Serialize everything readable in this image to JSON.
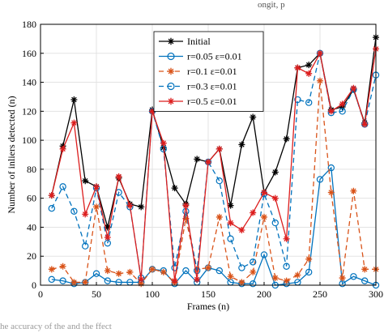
{
  "page_fragments": {
    "top": "ongit, p",
    "bottom": "he accuracy of the                        and the        ffect"
  },
  "chart_data": {
    "type": "line",
    "xlabel": "Frames (n)",
    "ylabel": "Number of inliers detected (n)",
    "xlim": [
      0,
      300
    ],
    "ylim": [
      0,
      180
    ],
    "xticks": [
      0,
      50,
      100,
      150,
      200,
      250,
      300
    ],
    "yticks": [
      0,
      20,
      40,
      60,
      80,
      100,
      120,
      140,
      160,
      180
    ],
    "grid": true,
    "legend_position": "top-center",
    "x": [
      10,
      20,
      30,
      40,
      50,
      60,
      70,
      80,
      90,
      100,
      110,
      120,
      130,
      140,
      150,
      160,
      170,
      180,
      190,
      200,
      210,
      220,
      230,
      240,
      250,
      260,
      270,
      280,
      290,
      300
    ],
    "series": [
      {
        "name": "Initial",
        "color": "#000000",
        "dash": "solid",
        "marker": "asterisk",
        "values": [
          62,
          96,
          128,
          72,
          68,
          40,
          74,
          56,
          54,
          121,
          95,
          67,
          56,
          87,
          85,
          94,
          55,
          97,
          116,
          64,
          78,
          101,
          150,
          152,
          160,
          121,
          123,
          135,
          112,
          171
        ]
      },
      {
        "name": "r=0.05  ε=0.01",
        "color": "#0072BD",
        "dash": "solid",
        "marker": "circle",
        "values": [
          4,
          3,
          1,
          2,
          8,
          3,
          2,
          2,
          2,
          11,
          10,
          1,
          10,
          2,
          12,
          10,
          2,
          1,
          1,
          21,
          0,
          1,
          2,
          9,
          73,
          81,
          1,
          6,
          3,
          0
        ]
      },
      {
        "name": "r=0.1  ε=0.01",
        "color": "#D95319",
        "dash": "dashed",
        "marker": "asterisk",
        "values": [
          11,
          13,
          2,
          2,
          54,
          10,
          8,
          9,
          1,
          11,
          9,
          2,
          46,
          11,
          12,
          47,
          6,
          2,
          9,
          47,
          5,
          3,
          7,
          18,
          141,
          64,
          5,
          65,
          11,
          11
        ]
      },
      {
        "name": "r=0.3  ε=0.01",
        "color": "#0072BD",
        "dash": "dashed",
        "marker": "circle",
        "values": [
          53,
          68,
          51,
          27,
          67,
          29,
          64,
          54,
          5,
          120,
          94,
          12,
          51,
          10,
          85,
          72,
          32,
          12,
          16,
          63,
          43,
          13,
          128,
          126,
          160,
          119,
          120,
          135,
          111,
          145
        ]
      },
      {
        "name": "r=0.5  ε=0.01",
        "color": "#DC1E1E",
        "dash": "solid",
        "marker": "asterisk",
        "values": [
          62,
          94,
          112,
          49,
          68,
          33,
          75,
          55,
          4,
          120,
          98,
          3,
          55,
          4,
          85,
          94,
          43,
          38,
          50,
          64,
          60,
          32,
          150,
          146,
          160,
          120,
          125,
          136,
          111,
          163
        ]
      }
    ]
  }
}
